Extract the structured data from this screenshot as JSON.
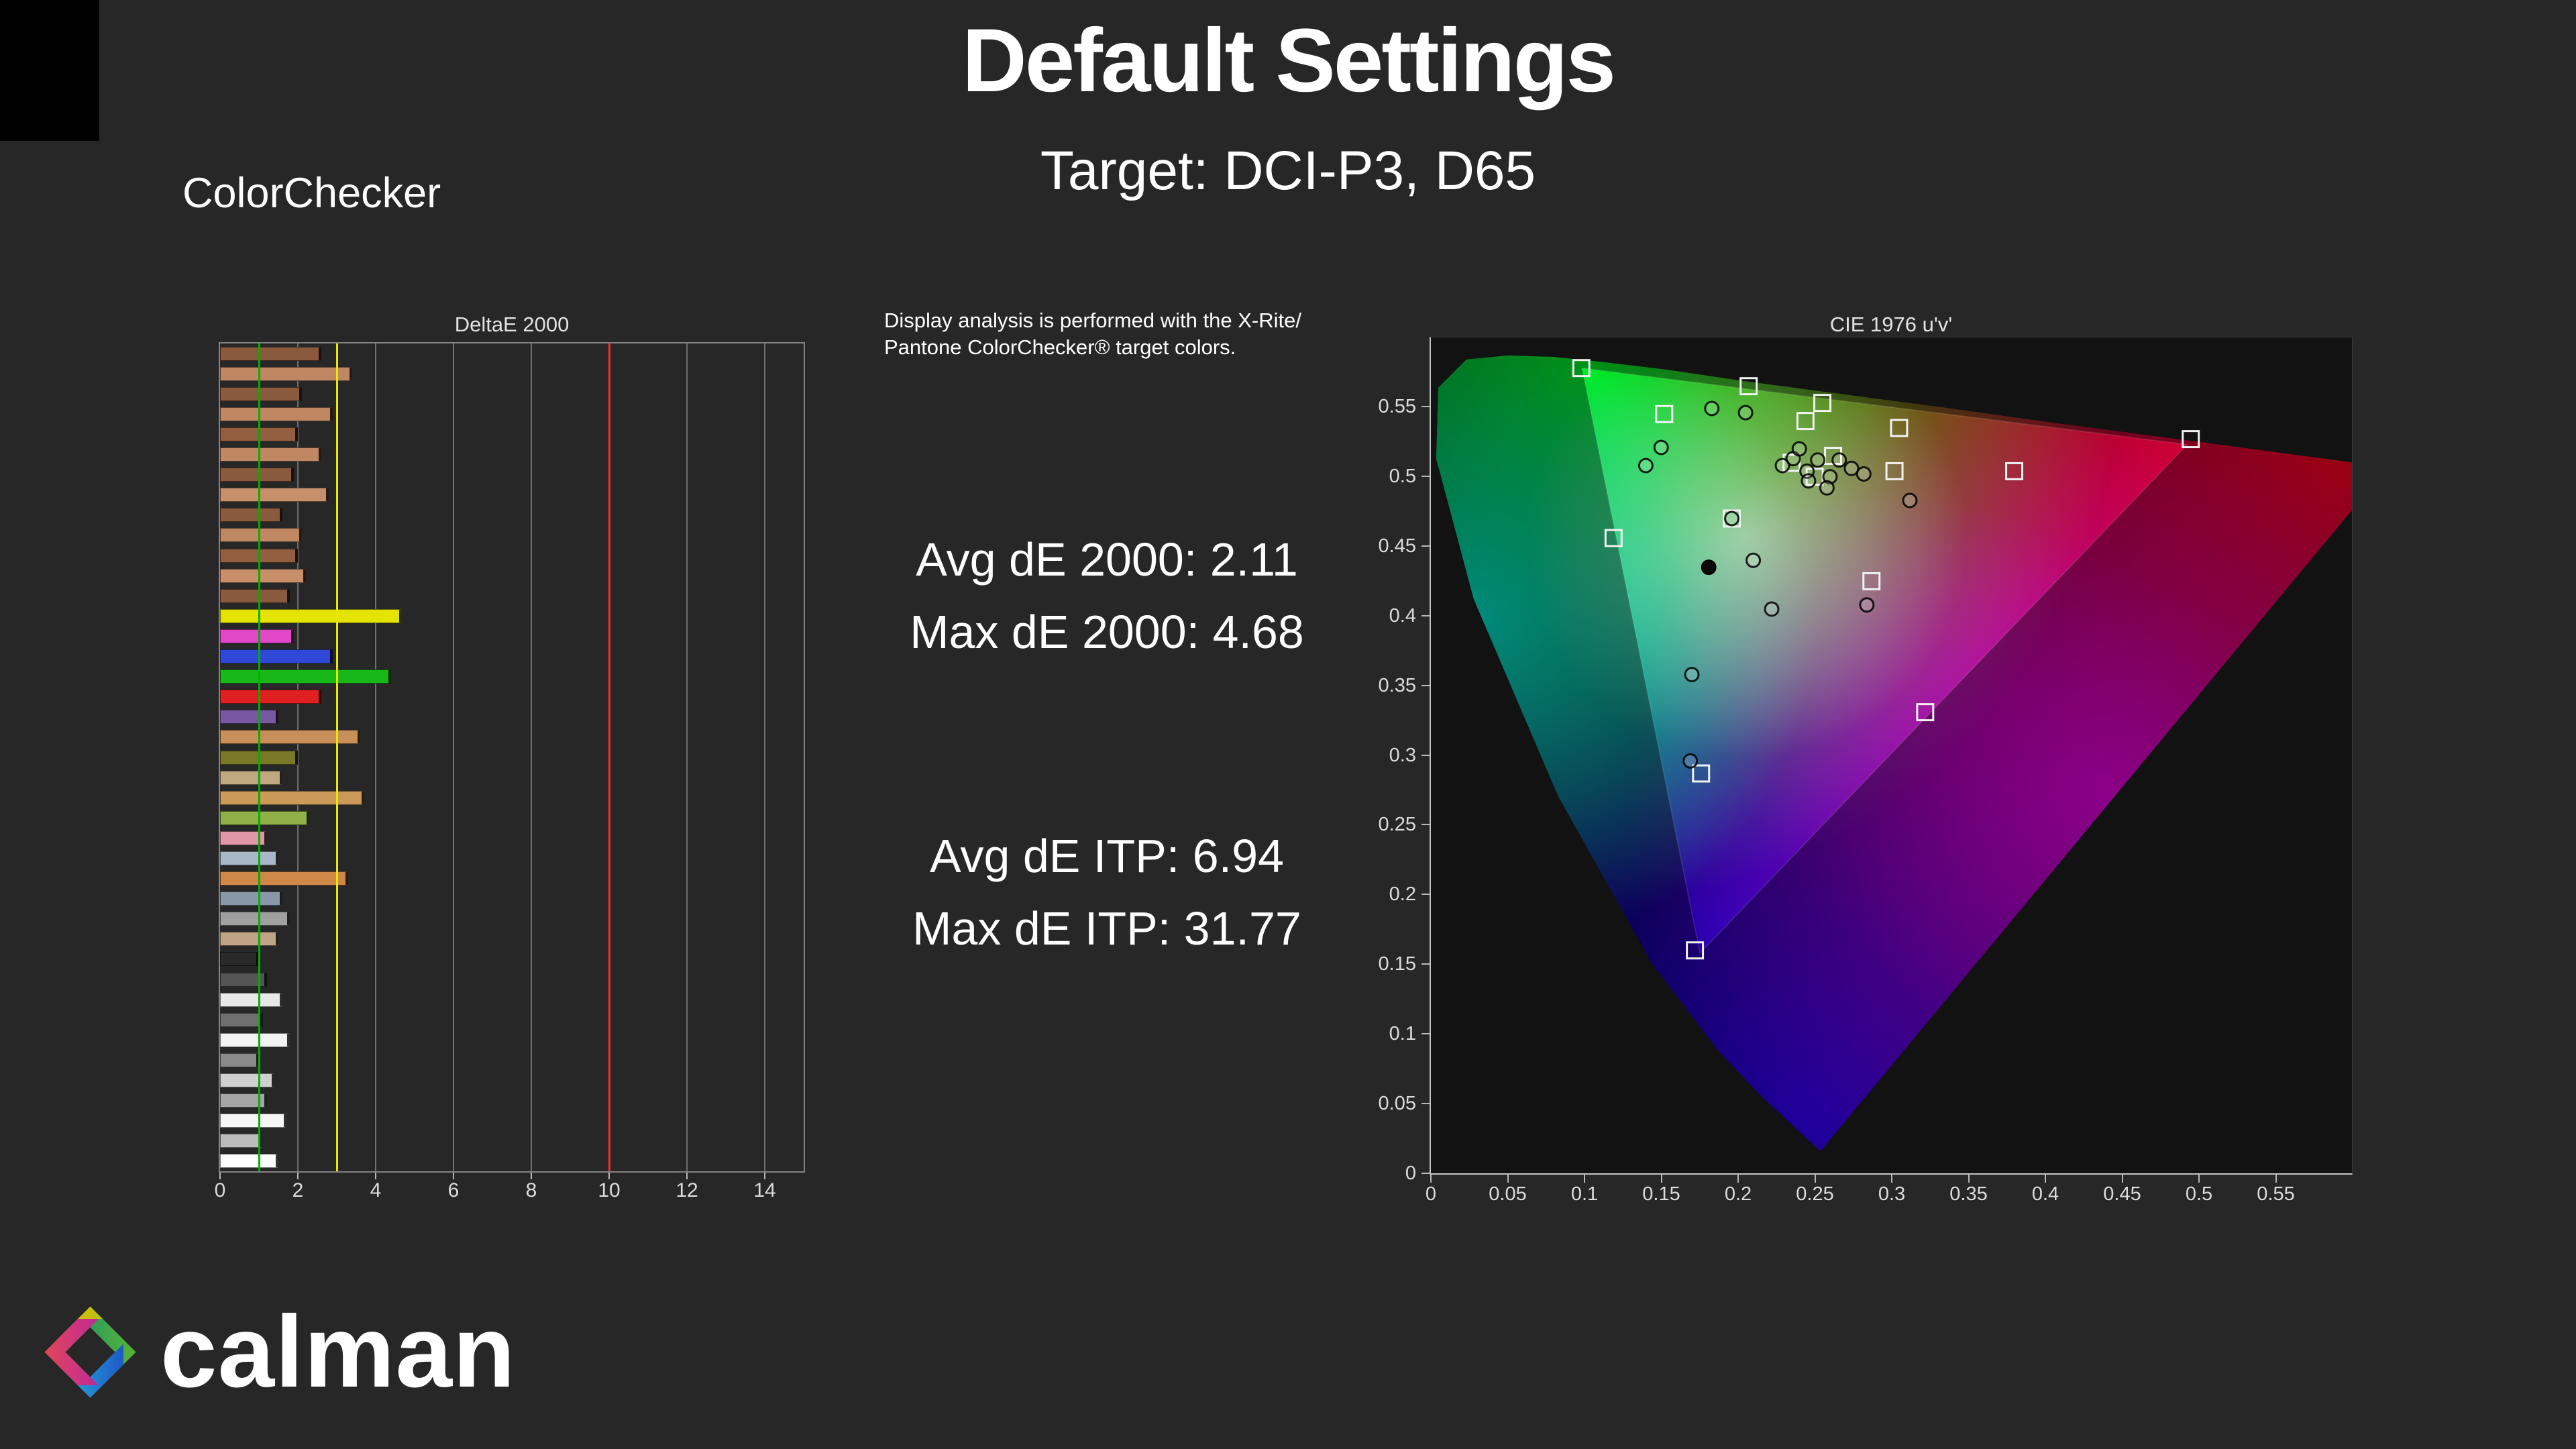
{
  "header": {
    "title": "Default Settings",
    "subtitle": "Target: DCI-P3, D65"
  },
  "section_label": "ColorChecker",
  "info": {
    "lines": [
      "Display analysis is performed with the X-Rite/",
      "Pantone ColorChecker® target colors."
    ]
  },
  "stats": {
    "avg_de2000": "Avg dE 2000: 2.11",
    "max_de2000": "Max dE 2000: 4.68",
    "avg_deitp": "Avg dE ITP: 6.94",
    "max_deitp": "Max dE ITP: 31.77"
  },
  "logo": {
    "text": "calman"
  },
  "colors": {
    "background": "#272727",
    "ref_green": "#00b000",
    "ref_yellow": "#e8e800",
    "ref_red": "#ff2a2a"
  },
  "chart_data": [
    {
      "type": "bar",
      "title": "DeltaE 2000",
      "orientation": "horizontal",
      "xlabel": "",
      "ylabel": "",
      "xlim": [
        0,
        15
      ],
      "x_ticks": [
        0,
        2,
        4,
        6,
        8,
        10,
        12,
        14
      ],
      "reference_lines": [
        {
          "value": 1,
          "color": "#00b000"
        },
        {
          "value": 3,
          "color": "#e8e800"
        },
        {
          "value": 10,
          "color": "#ff2a2a"
        }
      ],
      "avg": 2.11,
      "max": 4.68,
      "bars": [
        {
          "color": "#8a5a3e",
          "value": 2.6
        },
        {
          "color": "#c08862",
          "value": 3.4
        },
        {
          "color": "#8a5a3e",
          "value": 2.1
        },
        {
          "color": "#c08862",
          "value": 2.9
        },
        {
          "color": "#925f40",
          "value": 2.0
        },
        {
          "color": "#c08862",
          "value": 2.6
        },
        {
          "color": "#8a5a3e",
          "value": 1.9
        },
        {
          "color": "#c8906a",
          "value": 2.8
        },
        {
          "color": "#8a5a3e",
          "value": 1.6
        },
        {
          "color": "#c08862",
          "value": 2.1
        },
        {
          "color": "#925f40",
          "value": 2.0
        },
        {
          "color": "#c8906a",
          "value": 2.2
        },
        {
          "color": "#8a5a3e",
          "value": 1.8
        },
        {
          "color": "#e4e400",
          "value": 4.68
        },
        {
          "color": "#e048c8",
          "value": 1.9
        },
        {
          "color": "#3048d8",
          "value": 2.9
        },
        {
          "color": "#18b818",
          "value": 4.4
        },
        {
          "color": "#e02020",
          "value": 2.6
        },
        {
          "color": "#7858a0",
          "value": 1.5
        },
        {
          "color": "#c89058",
          "value": 3.6
        },
        {
          "color": "#787828",
          "value": 2.0
        },
        {
          "color": "#c0a880",
          "value": 1.6
        },
        {
          "color": "#cc9a58",
          "value": 3.7
        },
        {
          "color": "#90b048",
          "value": 2.3
        },
        {
          "color": "#e098a8",
          "value": 1.2
        },
        {
          "color": "#a8b8c8",
          "value": 1.5
        },
        {
          "color": "#d08848",
          "value": 3.3
        },
        {
          "color": "#8898a8",
          "value": 1.6
        },
        {
          "color": "#a0a0a0",
          "value": 1.8
        },
        {
          "color": "#c0a488",
          "value": 1.5
        },
        {
          "color": "#2a2a2a",
          "value": 1.0
        },
        {
          "color": "#555555",
          "value": 1.2
        },
        {
          "color": "#e8e8e8",
          "value": 1.6
        },
        {
          "color": "#6f6f6f",
          "value": 1.1
        },
        {
          "color": "#f2f2f2",
          "value": 1.8
        },
        {
          "color": "#8a8a8a",
          "value": 1.0
        },
        {
          "color": "#d0d0d0",
          "value": 1.4
        },
        {
          "color": "#a5a5a5",
          "value": 1.2
        },
        {
          "color": "#f6f6f6",
          "value": 1.7
        },
        {
          "color": "#bcbcbc",
          "value": 1.1
        },
        {
          "color": "#ffffff",
          "value": 1.5
        }
      ]
    },
    {
      "type": "scatter",
      "title": "CIE 1976 u'v'",
      "xlabel": "",
      "ylabel": "",
      "xlim": [
        0,
        0.6
      ],
      "ylim": [
        0,
        0.6
      ],
      "x_ticks": [
        "0",
        "0.05",
        "0.1",
        "0.15",
        "0.2",
        "0.25",
        "0.3",
        "0.35",
        "0.4",
        "0.45",
        "0.5",
        "0.55"
      ],
      "y_ticks": [
        "0",
        "0.05",
        "0.1",
        "0.15",
        "0.2",
        "0.25",
        "0.3",
        "0.35",
        "0.4",
        "0.45",
        "0.5",
        "0.55"
      ],
      "gamut": "DCI-P3",
      "gamut_triangle_uv": [
        [
          0.0986,
          0.5777
        ],
        [
          0.4964,
          0.5255
        ],
        [
          0.1754,
          0.1579
        ]
      ],
      "targets": [
        [
          0.098,
          0.578
        ],
        [
          0.207,
          0.565
        ],
        [
          0.152,
          0.545
        ],
        [
          0.255,
          0.553
        ],
        [
          0.305,
          0.535
        ],
        [
          0.495,
          0.527
        ],
        [
          0.302,
          0.504
        ],
        [
          0.38,
          0.504
        ],
        [
          0.119,
          0.456
        ],
        [
          0.196,
          0.47
        ],
        [
          0.287,
          0.425
        ],
        [
          0.322,
          0.331
        ],
        [
          0.176,
          0.287
        ],
        [
          0.172,
          0.16
        ],
        [
          0.235,
          0.51
        ],
        [
          0.25,
          0.5
        ],
        [
          0.262,
          0.515
        ],
        [
          0.244,
          0.54
        ]
      ],
      "measured": [
        [
          0.15,
          0.521
        ],
        [
          0.14,
          0.508
        ],
        [
          0.183,
          0.549
        ],
        [
          0.205,
          0.546
        ],
        [
          0.236,
          0.513
        ],
        [
          0.245,
          0.504
        ],
        [
          0.252,
          0.512
        ],
        [
          0.26,
          0.5
        ],
        [
          0.266,
          0.512
        ],
        [
          0.274,
          0.506
        ],
        [
          0.282,
          0.502
        ],
        [
          0.246,
          0.497
        ],
        [
          0.312,
          0.483
        ],
        [
          0.196,
          0.47
        ],
        [
          0.21,
          0.44
        ],
        [
          0.222,
          0.405
        ],
        [
          0.284,
          0.408
        ],
        [
          0.17,
          0.358
        ],
        [
          0.169,
          0.296
        ],
        [
          0.229,
          0.508
        ],
        [
          0.24,
          0.52
        ],
        [
          0.258,
          0.492
        ]
      ],
      "measured_filled": [
        [
          0.181,
          0.435
        ]
      ]
    }
  ]
}
